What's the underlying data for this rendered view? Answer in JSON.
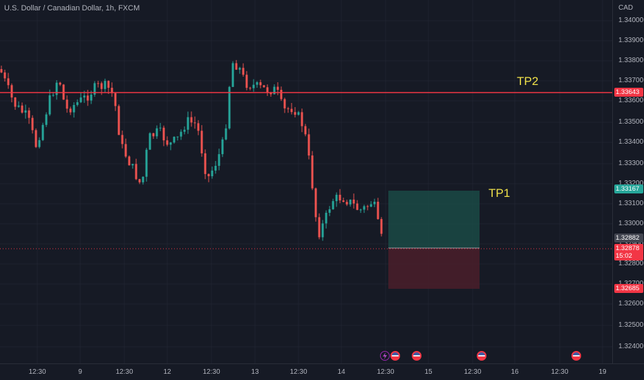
{
  "title": "U.S. Dollar / Canadian Dollar, 1h, FXCM",
  "currency": "CAD",
  "price_ticks": [
    "1.34000",
    "1.33900",
    "1.33800",
    "1.33700",
    "1.33600",
    "1.33500",
    "1.33400",
    "1.33300",
    "1.33200",
    "1.33100",
    "1.33000",
    "1.32900",
    "1.32800",
    "1.32700",
    "1.32600",
    "1.32500",
    "1.32400"
  ],
  "time_labels": [
    "12:30",
    "9",
    "12:30",
    "12",
    "12:30",
    "13",
    "12:30",
    "14",
    "12:30",
    "15",
    "12:30",
    "16",
    "12:30",
    "19"
  ],
  "tags": {
    "tp2_line": "1.33643",
    "tp1": "1.33167",
    "last_close": "1.32882",
    "current": "1.32878",
    "countdown": "15:02",
    "stop": "1.32685"
  },
  "annotations": {
    "tp2": "TP2",
    "tp1": "TP1"
  },
  "colors": {
    "up": "#26a69a",
    "down": "#ef5350",
    "line": "#f23645",
    "tp_text": "#f1e24a",
    "bg": "#161a25"
  },
  "events": [
    {
      "type": "lightning-icon"
    },
    {
      "type": "us-flag-icon"
    },
    {
      "type": "us-flag-icon"
    },
    {
      "type": "us-flag-icon"
    },
    {
      "type": "us-flag-icon"
    }
  ]
}
